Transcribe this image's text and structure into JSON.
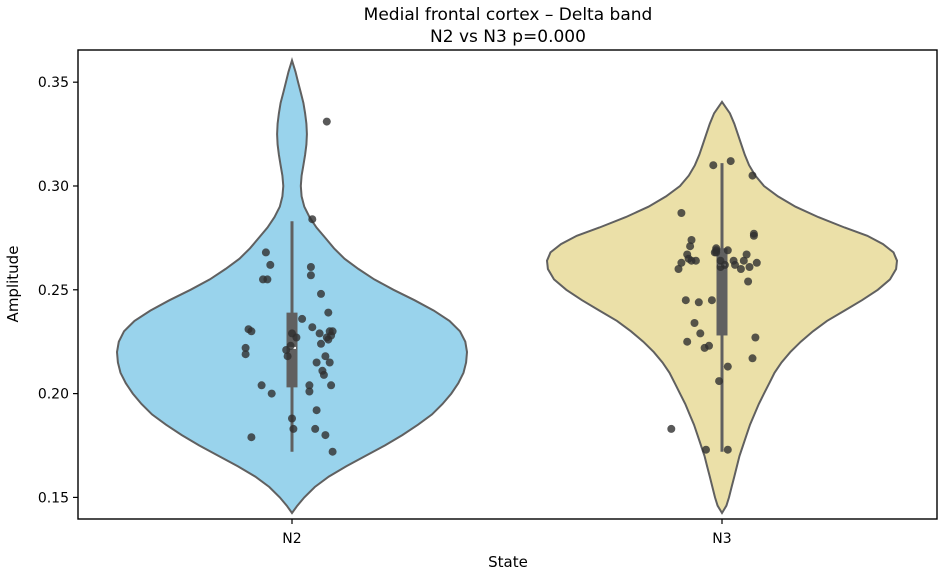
{
  "chart_data": {
    "type": "violin",
    "title": "Medial frontal cortex – Delta band",
    "subtitle": "N2 vs N3  p=0.000",
    "xlabel": "State",
    "ylabel": "Amplitude",
    "ylim": [
      0.1396,
      0.3655
    ],
    "yticks": [
      0.15,
      0.2,
      0.25,
      0.3,
      0.35
    ],
    "ytick_labels": [
      "0.15",
      "0.20",
      "0.25",
      "0.30",
      "0.35"
    ],
    "categories": [
      "N2",
      "N3"
    ],
    "grid": false,
    "colors": {
      "N2": "#99d3ec",
      "N3": "#ebe0a8",
      "outline": "#606060",
      "box": "#606060",
      "median": "#ffffff",
      "point": "#2f2f2f"
    },
    "series": [
      {
        "category": "N2",
        "min": 0.172,
        "q1": 0.203,
        "median": 0.222,
        "q3": 0.239,
        "max": 0.283,
        "kde_range": [
          0.1425,
          0.3605
        ],
        "kde": [
          [
            0.1425,
            0.0
          ],
          [
            0.146,
            0.03
          ],
          [
            0.15,
            0.07
          ],
          [
            0.155,
            0.13
          ],
          [
            0.16,
            0.21
          ],
          [
            0.165,
            0.31
          ],
          [
            0.17,
            0.42
          ],
          [
            0.175,
            0.53
          ],
          [
            0.18,
            0.63
          ],
          [
            0.185,
            0.72
          ],
          [
            0.19,
            0.8
          ],
          [
            0.195,
            0.86
          ],
          [
            0.2,
            0.91
          ],
          [
            0.205,
            0.95
          ],
          [
            0.21,
            0.98
          ],
          [
            0.215,
            0.995
          ],
          [
            0.22,
            1.0
          ],
          [
            0.225,
            0.99
          ],
          [
            0.23,
            0.96
          ],
          [
            0.235,
            0.9
          ],
          [
            0.24,
            0.81
          ],
          [
            0.245,
            0.7
          ],
          [
            0.25,
            0.58
          ],
          [
            0.255,
            0.47
          ],
          [
            0.26,
            0.38
          ],
          [
            0.265,
            0.3
          ],
          [
            0.27,
            0.24
          ],
          [
            0.275,
            0.19
          ],
          [
            0.28,
            0.14
          ],
          [
            0.285,
            0.1
          ],
          [
            0.29,
            0.07
          ],
          [
            0.295,
            0.055
          ],
          [
            0.3,
            0.05
          ],
          [
            0.305,
            0.055
          ],
          [
            0.31,
            0.065
          ],
          [
            0.315,
            0.075
          ],
          [
            0.32,
            0.082
          ],
          [
            0.325,
            0.085
          ],
          [
            0.33,
            0.082
          ],
          [
            0.335,
            0.075
          ],
          [
            0.34,
            0.065
          ],
          [
            0.345,
            0.05
          ],
          [
            0.35,
            0.035
          ],
          [
            0.355,
            0.02
          ],
          [
            0.3605,
            0.0
          ]
        ],
        "points": [
          [
            -0.28,
            0.179
          ],
          [
            -0.21,
            0.204
          ],
          [
            -0.14,
            0.2
          ],
          [
            -0.32,
            0.219
          ],
          [
            -0.32,
            0.222
          ],
          [
            -0.3,
            0.231
          ],
          [
            -0.28,
            0.23
          ],
          [
            -0.2,
            0.255
          ],
          [
            -0.17,
            0.255
          ],
          [
            -0.15,
            0.262
          ],
          [
            -0.18,
            0.268
          ],
          [
            -0.04,
            0.221
          ],
          [
            -0.03,
            0.218
          ],
          [
            -0.01,
            0.223
          ],
          [
            0.0,
            0.229
          ],
          [
            0.0,
            0.188
          ],
          [
            0.01,
            0.183
          ],
          [
            0.03,
            0.227
          ],
          [
            0.07,
            0.236
          ],
          [
            0.12,
            0.201
          ],
          [
            0.12,
            0.204
          ],
          [
            0.13,
            0.261
          ],
          [
            0.13,
            0.257
          ],
          [
            0.14,
            0.232
          ],
          [
            0.14,
            0.284
          ],
          [
            0.16,
            0.183
          ],
          [
            0.17,
            0.192
          ],
          [
            0.17,
            0.215
          ],
          [
            0.19,
            0.229
          ],
          [
            0.2,
            0.224
          ],
          [
            0.2,
            0.248
          ],
          [
            0.21,
            0.211
          ],
          [
            0.22,
            0.209
          ],
          [
            0.23,
            0.218
          ],
          [
            0.23,
            0.18
          ],
          [
            0.24,
            0.227
          ],
          [
            0.25,
            0.239
          ],
          [
            0.25,
            0.226
          ],
          [
            0.26,
            0.215
          ],
          [
            0.26,
            0.23
          ],
          [
            0.27,
            0.204
          ],
          [
            0.27,
            0.228
          ],
          [
            0.28,
            0.23
          ],
          [
            0.28,
            0.172
          ],
          [
            0.24,
            0.331
          ]
        ]
      },
      {
        "category": "N3",
        "min": 0.172,
        "q1": 0.228,
        "median": 0.262,
        "q3": 0.27,
        "max": 0.311,
        "kde_range": [
          0.1425,
          0.3405
        ],
        "kde": [
          [
            0.1425,
            0.0
          ],
          [
            0.146,
            0.025
          ],
          [
            0.15,
            0.04
          ],
          [
            0.155,
            0.055
          ],
          [
            0.16,
            0.07
          ],
          [
            0.165,
            0.085
          ],
          [
            0.17,
            0.1
          ],
          [
            0.175,
            0.12
          ],
          [
            0.18,
            0.14
          ],
          [
            0.185,
            0.16
          ],
          [
            0.19,
            0.185
          ],
          [
            0.195,
            0.21
          ],
          [
            0.2,
            0.24
          ],
          [
            0.205,
            0.27
          ],
          [
            0.21,
            0.3
          ],
          [
            0.215,
            0.34
          ],
          [
            0.22,
            0.39
          ],
          [
            0.225,
            0.45
          ],
          [
            0.23,
            0.52
          ],
          [
            0.235,
            0.6
          ],
          [
            0.24,
            0.7
          ],
          [
            0.245,
            0.8
          ],
          [
            0.25,
            0.89
          ],
          [
            0.255,
            0.96
          ],
          [
            0.26,
            0.995
          ],
          [
            0.264,
            1.0
          ],
          [
            0.268,
            0.98
          ],
          [
            0.272,
            0.92
          ],
          [
            0.276,
            0.83
          ],
          [
            0.28,
            0.7
          ],
          [
            0.285,
            0.55
          ],
          [
            0.29,
            0.42
          ],
          [
            0.295,
            0.32
          ],
          [
            0.3,
            0.24
          ],
          [
            0.305,
            0.19
          ],
          [
            0.31,
            0.155
          ],
          [
            0.315,
            0.13
          ],
          [
            0.32,
            0.11
          ],
          [
            0.325,
            0.09
          ],
          [
            0.33,
            0.07
          ],
          [
            0.335,
            0.045
          ],
          [
            0.3405,
            0.0
          ]
        ],
        "points": [
          [
            -0.35,
            0.183
          ],
          [
            -0.3,
            0.26
          ],
          [
            -0.28,
            0.263
          ],
          [
            -0.28,
            0.287
          ],
          [
            -0.24,
            0.267
          ],
          [
            -0.25,
            0.245
          ],
          [
            -0.24,
            0.225
          ],
          [
            -0.23,
            0.265
          ],
          [
            -0.22,
            0.271
          ],
          [
            -0.21,
            0.274
          ],
          [
            -0.21,
            0.264
          ],
          [
            -0.19,
            0.234
          ],
          [
            -0.18,
            0.264
          ],
          [
            -0.16,
            0.244
          ],
          [
            -0.15,
            0.229
          ],
          [
            -0.12,
            0.222
          ],
          [
            -0.11,
            0.173
          ],
          [
            -0.09,
            0.223
          ],
          [
            -0.07,
            0.245
          ],
          [
            -0.06,
            0.31
          ],
          [
            -0.05,
            0.268
          ],
          [
            -0.04,
            0.269
          ],
          [
            -0.04,
            0.27
          ],
          [
            -0.04,
            0.268
          ],
          [
            -0.01,
            0.264
          ],
          [
            -0.02,
            0.206
          ],
          [
            -0.01,
            0.261
          ],
          [
            0.02,
            0.262
          ],
          [
            0.04,
            0.269
          ],
          [
            0.04,
            0.213
          ],
          [
            0.04,
            0.173
          ],
          [
            0.06,
            0.312
          ],
          [
            0.08,
            0.264
          ],
          [
            0.09,
            0.262
          ],
          [
            0.13,
            0.26
          ],
          [
            0.15,
            0.264
          ],
          [
            0.17,
            0.267
          ],
          [
            0.18,
            0.254
          ],
          [
            0.19,
            0.261
          ],
          [
            0.21,
            0.217
          ],
          [
            0.22,
            0.276
          ],
          [
            0.23,
            0.227
          ],
          [
            0.24,
            0.263
          ],
          [
            0.21,
            0.305
          ],
          [
            0.22,
            0.277
          ]
        ]
      }
    ]
  }
}
